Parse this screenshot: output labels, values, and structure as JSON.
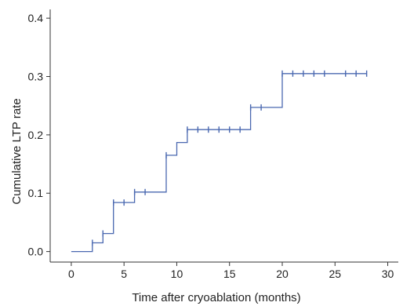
{
  "chart_data": {
    "type": "line",
    "xlabel": "Time after cryoablation (months)",
    "ylabel": "Cumulative LTP rate",
    "xlim": [
      -2,
      31
    ],
    "ylim": [
      -0.018,
      0.415
    ],
    "xticks": [
      0,
      5,
      10,
      15,
      20,
      25,
      30
    ],
    "yticks": [
      0.0,
      0.1,
      0.2,
      0.3,
      0.4
    ],
    "xtick_labels": [
      "0",
      "5",
      "10",
      "15",
      "20",
      "25",
      "30"
    ],
    "ytick_labels": [
      "0.0",
      "0.1",
      "0.2",
      "0.3",
      "0.4"
    ],
    "grid": false,
    "line_color": "#4a68b0",
    "series": [
      {
        "step": {
          "x": [
            0,
            2,
            2,
            3,
            3,
            4,
            4,
            6,
            6,
            9,
            9,
            10,
            10,
            11,
            11,
            17,
            17,
            20,
            20,
            28
          ],
          "y": [
            0.0,
            0.0,
            0.015,
            0.015,
            0.031,
            0.031,
            0.084,
            0.084,
            0.102,
            0.102,
            0.165,
            0.165,
            0.187,
            0.187,
            0.209,
            0.209,
            0.247,
            0.247,
            0.305,
            0.305
          ]
        },
        "censored": {
          "x": [
            2,
            3,
            4,
            5,
            6,
            7,
            9,
            11,
            12,
            13,
            14,
            15,
            16,
            17,
            18,
            20,
            21,
            22,
            23,
            24,
            26,
            27,
            28
          ],
          "y": [
            0.015,
            0.031,
            0.084,
            0.084,
            0.102,
            0.102,
            0.165,
            0.209,
            0.209,
            0.209,
            0.209,
            0.209,
            0.209,
            0.247,
            0.247,
            0.305,
            0.305,
            0.305,
            0.305,
            0.305,
            0.305,
            0.305,
            0.305
          ]
        }
      }
    ]
  }
}
